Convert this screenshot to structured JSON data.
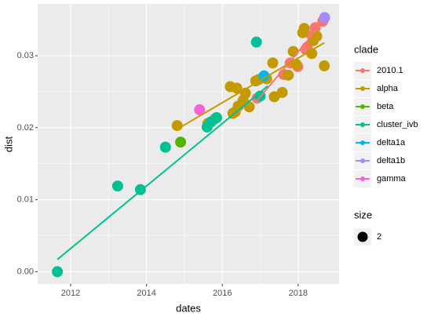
{
  "chart_data": {
    "type": "scatter",
    "x_label": "dates",
    "y_label": "dist",
    "xlim": [
      2011.13,
      2019.08
    ],
    "ylim": [
      -0.0017,
      0.0372
    ],
    "xticks": [
      2012,
      2014,
      2016,
      2018
    ],
    "yticks": [
      {
        "value": 0,
        "label": "0.00"
      },
      {
        "value": 0.01,
        "label": "0.01"
      },
      {
        "value": 0.02,
        "label": "0.02"
      },
      {
        "value": 0.03,
        "label": "0.03"
      }
    ],
    "grid": true,
    "legend_title": "clade",
    "series": [
      {
        "name": "2010.1",
        "color": "#F8766D",
        "x": [
          2016.92,
          2017.62,
          2017.79,
          2017.99,
          2018.2,
          2018.24,
          2018.36,
          2018.45,
          2018.65
        ],
        "values": [
          0.0241,
          0.0274,
          0.029,
          0.0285,
          0.0309,
          0.0312,
          0.0328,
          0.0339,
          0.0348
        ],
        "fit": [
          [
            2016.92,
            0.0238
          ],
          [
            2018.65,
            0.0346
          ]
        ]
      },
      {
        "name": "alpha",
        "color": "#C49A00",
        "x": [
          2014.81,
          2015.62,
          2015.8,
          2016.21,
          2016.28,
          2016.34,
          2016.38,
          2016.42,
          2016.55,
          2016.61,
          2016.71,
          2016.88,
          2016.96,
          2017.17,
          2017.33,
          2017.37,
          2017.58,
          2017.74,
          2017.87,
          2017.95,
          2018.12,
          2018.16,
          2018.36,
          2018.4,
          2018.49,
          2018.69
        ],
        "values": [
          0.0203,
          0.0206,
          0.0212,
          0.0257,
          0.022,
          0.0222,
          0.0255,
          0.023,
          0.0238,
          0.0248,
          0.0229,
          0.0265,
          0.0267,
          0.0268,
          0.029,
          0.0243,
          0.0249,
          0.0273,
          0.0306,
          0.0288,
          0.0332,
          0.0338,
          0.0303,
          0.0321,
          0.0327,
          0.0286
        ],
        "fit": [
          [
            2014.81,
            0.0198
          ],
          [
            2018.69,
            0.0318
          ]
        ]
      },
      {
        "name": "beta",
        "color": "#53B400",
        "x": [
          2014.9
        ],
        "values": [
          0.018
        ]
      },
      {
        "name": "cluster_ivb",
        "color": "#00C094",
        "x": [
          2011.65,
          2013.24,
          2013.84,
          2014.5,
          2015.6,
          2015.7,
          2015.85,
          2016.9,
          2017.0
        ],
        "values": [
          0.0,
          0.0119,
          0.0114,
          0.0173,
          0.0201,
          0.0208,
          0.0214,
          0.0319,
          0.0244
        ],
        "fit": [
          [
            2011.65,
            0.0017
          ],
          [
            2017.2,
            0.0258
          ]
        ]
      },
      {
        "name": "delta1a",
        "color": "#00B6EB",
        "x": [
          2017.1
        ],
        "values": [
          0.0272
        ]
      },
      {
        "name": "delta1b",
        "color": "#A58AFF",
        "x": [
          2018.7
        ],
        "values": [
          0.0353
        ]
      },
      {
        "name": "gamma",
        "color": "#FB61D7",
        "x": [
          2015.4
        ],
        "values": [
          0.0225
        ]
      }
    ],
    "size_legend": {
      "title": "size",
      "values": [
        2
      ]
    }
  }
}
